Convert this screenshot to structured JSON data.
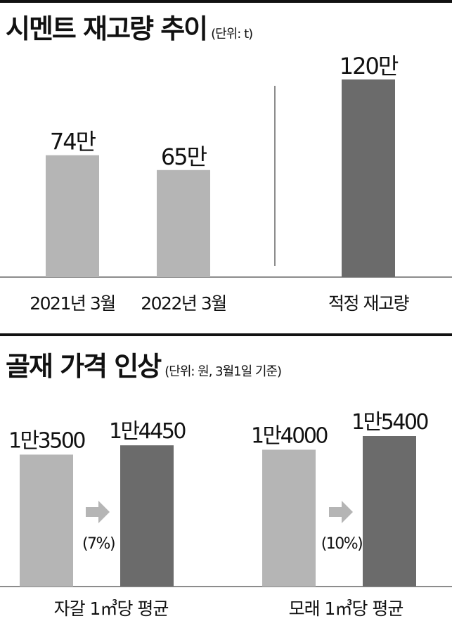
{
  "colors": {
    "light": "#b5b5b5",
    "dark": "#6b6b6b",
    "rule": "#111111",
    "baseline": "#666666"
  },
  "section1": {
    "title": "시멘트 재고량 추이",
    "unit": "(단위: t)"
  },
  "section2": {
    "title": "골재 가격 인상",
    "unit": "(단위: 원, 3월1일 기준)"
  },
  "chart_data": [
    {
      "type": "bar",
      "title": "시멘트 재고량 추이",
      "unit": "(단위: t)",
      "categories": [
        "2021년 3월",
        "2022년 3월",
        "적정 재고량"
      ],
      "values": [
        740000,
        650000,
        1200000
      ],
      "value_labels": [
        "74만",
        "65만",
        "120만"
      ],
      "colors": [
        "#b5b5b5",
        "#b5b5b5",
        "#6b6b6b"
      ],
      "ylim": [
        0,
        1200000
      ]
    },
    {
      "type": "bar",
      "title": "골재 가격 인상",
      "unit": "(단위: 원, 3월1일 기준)",
      "groups": [
        {
          "label": "자갈 1㎥당 평균",
          "values": [
            13500,
            14450
          ],
          "value_labels": [
            "1만3500",
            "1만4450"
          ],
          "change": "(7%)"
        },
        {
          "label": "모래 1㎥당 평균",
          "values": [
            14000,
            15400
          ],
          "value_labels": [
            "1만4000",
            "1만5400"
          ],
          "change": "(10%)"
        }
      ],
      "colors": [
        "#b5b5b5",
        "#6b6b6b"
      ]
    }
  ]
}
